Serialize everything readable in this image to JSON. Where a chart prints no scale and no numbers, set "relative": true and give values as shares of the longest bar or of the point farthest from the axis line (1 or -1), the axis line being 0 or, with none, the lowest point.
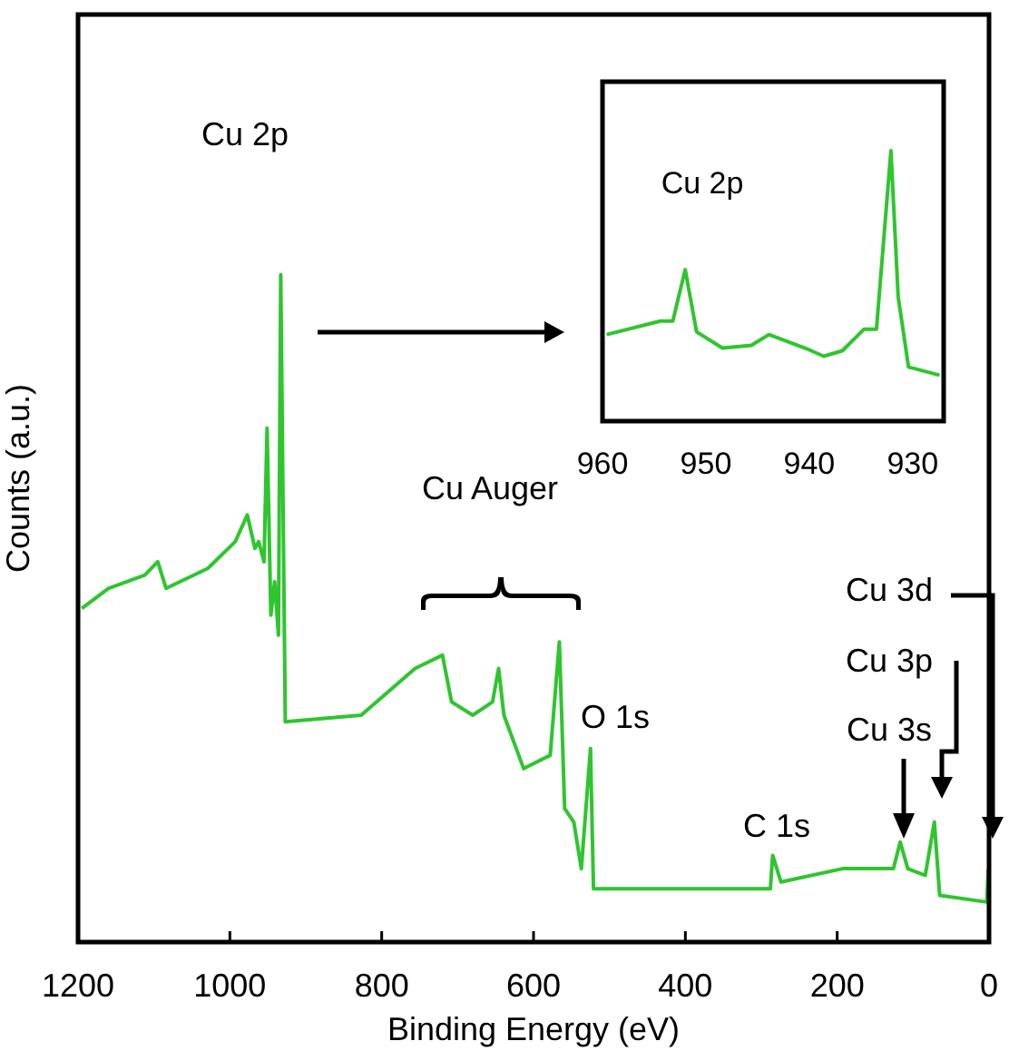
{
  "chart_data": [
    {
      "type": "line",
      "xlabel": "Binding Energy (eV)",
      "ylabel": "Counts (a.u.)",
      "relative": true,
      "color": "#2fc52f",
      "legend": false,
      "grid": false,
      "xlim": [
        1200,
        0
      ],
      "xticks": [
        1200,
        1000,
        800,
        600,
        400,
        200,
        0
      ],
      "x": [
        1195,
        1160,
        1112,
        1095,
        1084,
        1029,
        993,
        977,
        967,
        962,
        955,
        951,
        946,
        941,
        936,
        933,
        927,
        827,
        756,
        720,
        708,
        680,
        654,
        646,
        639,
        613,
        578,
        566,
        559,
        547,
        537,
        525,
        521,
        288,
        285,
        274,
        193,
        126,
        117,
        107,
        84,
        72,
        65,
        3,
        1
      ],
      "values": [
        0.5,
        0.53,
        0.55,
        0.57,
        0.53,
        0.56,
        0.6,
        0.64,
        0.59,
        0.6,
        0.57,
        0.77,
        0.49,
        0.54,
        0.46,
        1,
        0.33,
        0.34,
        0.41,
        0.43,
        0.36,
        0.34,
        0.36,
        0.41,
        0.34,
        0.26,
        0.28,
        0.45,
        0.2,
        0.18,
        0.11,
        0.29,
        0.08,
        0.08,
        0.13,
        0.09,
        0.11,
        0.11,
        0.15,
        0.11,
        0.1,
        0.18,
        0.07,
        0.06,
        0.11
      ],
      "annotations": [
        "Cu 2p",
        "Cu Auger",
        "O 1s",
        "C 1s",
        "Cu 3d",
        "Cu 3p",
        "Cu 3s"
      ]
    },
    {
      "type": "line",
      "relative": true,
      "color": "#2fc52f",
      "legend": false,
      "grid": false,
      "tick_labels": "x",
      "xlim": [
        960,
        927
      ],
      "xticks": [
        960,
        950,
        940,
        930
      ],
      "x": [
        959.6,
        954.4,
        953.2,
        952,
        950.9,
        948.4,
        945.6,
        943.9,
        940.4,
        938.6,
        936.8,
        934.7,
        933.5,
        932.1,
        931.4,
        930.4,
        927.4
      ],
      "values": [
        0.32,
        0.37,
        0.37,
        0.56,
        0.33,
        0.27,
        0.28,
        0.32,
        0.27,
        0.24,
        0.26,
        0.34,
        0.34,
        1,
        0.46,
        0.2,
        0.17
      ],
      "annotations": [
        "Cu 2p"
      ]
    }
  ]
}
